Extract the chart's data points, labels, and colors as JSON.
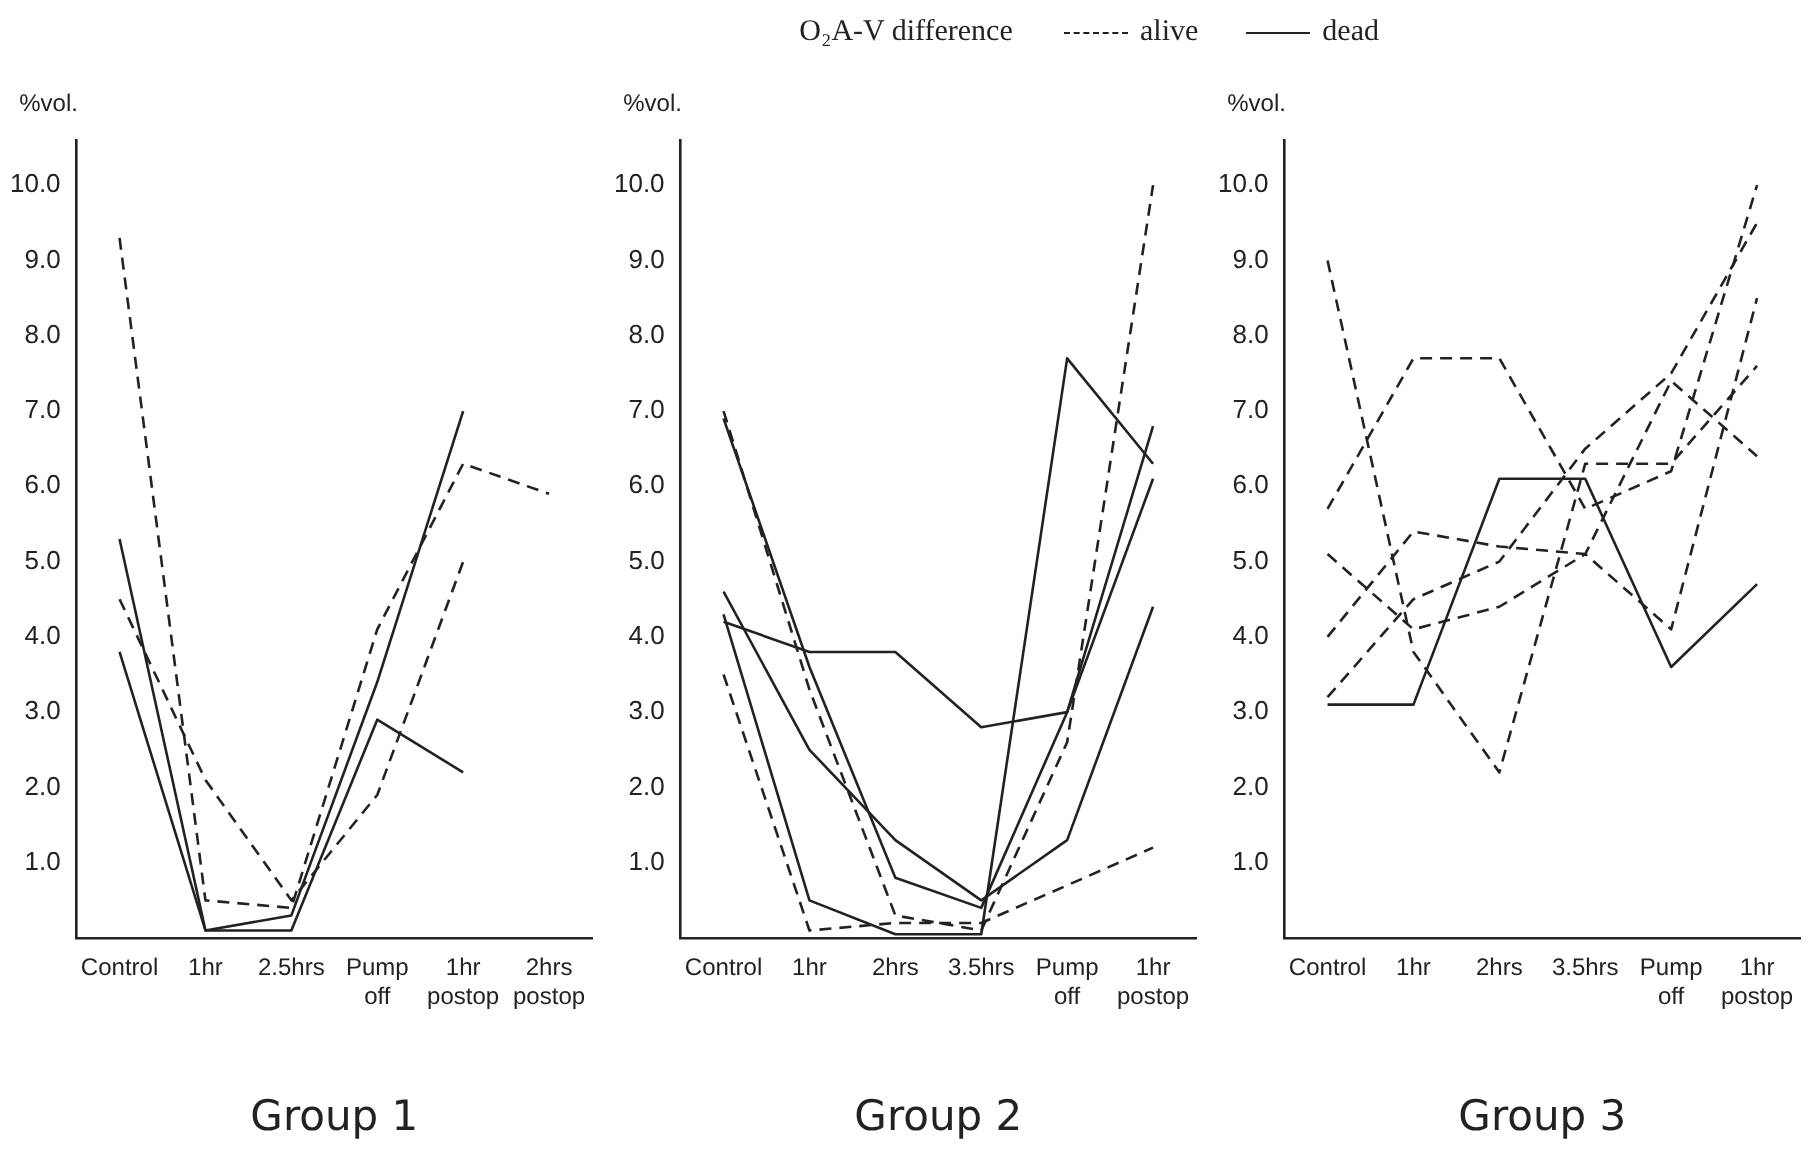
{
  "chart_data": [
    {
      "type": "line",
      "xlabel": "Group 1",
      "ylabel": "%vol.",
      "categories": [
        "Control",
        "1hr",
        "2.5hrs",
        "Pump off",
        "1hr postop",
        "2hrs postop"
      ],
      "ylim": [
        0,
        10.6
      ],
      "yticks": [
        {
          "value": 1,
          "label": "1.0"
        },
        {
          "value": 2,
          "label": "2.0"
        },
        {
          "value": 3,
          "label": "3.0"
        },
        {
          "value": 4,
          "label": "4.0"
        },
        {
          "value": 5,
          "label": "5.0"
        },
        {
          "value": 6,
          "label": "6.0"
        },
        {
          "value": 7,
          "label": "7.0"
        },
        {
          "value": 8,
          "label": "8.0"
        },
        {
          "value": 9,
          "label": "9.0"
        },
        {
          "value": 10,
          "label": "10.0"
        }
      ],
      "grid": false,
      "marker": "none",
      "series": [
        {
          "color": "#222222",
          "line_style": "dashed",
          "values": [
            9.3,
            0.5,
            0.4,
            4.1,
            6.3,
            5.9
          ]
        },
        {
          "color": "#222222",
          "line_style": "dashed",
          "values": [
            4.5,
            2.1,
            0.5,
            1.9,
            5.0,
            null
          ]
        },
        {
          "color": "#222222",
          "line_style": "solid",
          "values": [
            5.3,
            0.1,
            0.3,
            3.4,
            7.0,
            null
          ]
        },
        {
          "color": "#222222",
          "line_style": "solid",
          "values": [
            3.8,
            0.1,
            0.1,
            2.9,
            2.2,
            null
          ]
        }
      ]
    },
    {
      "type": "line",
      "title": "O₂A-V difference",
      "xlabel": "Group 2",
      "ylabel": "%vol.",
      "legend": "top right",
      "categories": [
        "Control",
        "1hr",
        "2hrs",
        "3.5hrs",
        "Pump off",
        "1hr postop"
      ],
      "ylim": [
        0,
        10.6
      ],
      "yticks": [
        {
          "value": 1,
          "label": "1.0"
        },
        {
          "value": 2,
          "label": "2.0"
        },
        {
          "value": 3,
          "label": "3.0"
        },
        {
          "value": 4,
          "label": "4.0"
        },
        {
          "value": 5,
          "label": "5.0"
        },
        {
          "value": 6,
          "label": "6.0"
        },
        {
          "value": 7,
          "label": "7.0"
        },
        {
          "value": 8,
          "label": "8.0"
        },
        {
          "value": 9,
          "label": "9.0"
        },
        {
          "value": 10,
          "label": "10.0"
        }
      ],
      "grid": false,
      "marker": "none",
      "series": [
        {
          "name": "alive",
          "color": "#222222",
          "line_style": "dashed",
          "values": [
            7.0,
            3.3,
            0.3,
            0.1,
            2.6,
            10.0
          ]
        },
        {
          "color": "#222222",
          "line_style": "dashed",
          "values": [
            3.5,
            0.1,
            0.2,
            0.2,
            0.7,
            1.2
          ]
        },
        {
          "name": "dead",
          "color": "#222222",
          "line_style": "solid",
          "values": [
            6.9,
            3.6,
            0.8,
            0.4,
            3.0,
            6.1
          ]
        },
        {
          "color": "#222222",
          "line_style": "solid",
          "values": [
            4.2,
            3.8,
            3.8,
            2.8,
            3.0,
            6.8
          ]
        },
        {
          "color": "#222222",
          "line_style": "solid",
          "values": [
            4.6,
            2.5,
            1.3,
            0.5,
            1.3,
            4.4
          ]
        },
        {
          "color": "#222222",
          "line_style": "solid",
          "values": [
            4.3,
            0.5,
            0.05,
            0.05,
            7.7,
            6.3
          ]
        }
      ]
    },
    {
      "type": "line",
      "xlabel": "Group 3",
      "ylabel": "%vol.",
      "categories": [
        "Control",
        "1hr",
        "2hrs",
        "3.5hrs",
        "Pump off",
        "1hr postop"
      ],
      "ylim": [
        0,
        10.6
      ],
      "yticks": [
        {
          "value": 1,
          "label": "1.0"
        },
        {
          "value": 2,
          "label": "2.0"
        },
        {
          "value": 3,
          "label": "3.0"
        },
        {
          "value": 4,
          "label": "4.0"
        },
        {
          "value": 5,
          "label": "5.0"
        },
        {
          "value": 6,
          "label": "6.0"
        },
        {
          "value": 7,
          "label": "7.0"
        },
        {
          "value": 8,
          "label": "8.0"
        },
        {
          "value": 9,
          "label": "9.0"
        },
        {
          "value": 10,
          "label": "10.0"
        }
      ],
      "grid": false,
      "marker": "none",
      "series": [
        {
          "color": "#222222",
          "line_style": "solid",
          "values": [
            3.1,
            3.1,
            6.1,
            6.1,
            3.6,
            4.7
          ]
        },
        {
          "color": "#222222",
          "line_style": "dashed",
          "values": [
            9.0,
            3.8,
            2.2,
            6.3,
            6.3,
            7.6
          ]
        },
        {
          "color": "#222222",
          "line_style": "dashed",
          "values": [
            5.7,
            7.7,
            7.7,
            5.7,
            6.2,
            10.0
          ]
        },
        {
          "color": "#222222",
          "line_style": "dashed",
          "values": [
            5.1,
            4.1,
            4.4,
            5.1,
            7.4,
            6.4
          ]
        },
        {
          "color": "#222222",
          "line_style": "dashed",
          "values": [
            4.0,
            5.4,
            5.2,
            5.1,
            4.1,
            8.5
          ]
        },
        {
          "color": "#222222",
          "line_style": "dashed",
          "values": [
            3.2,
            4.5,
            5.0,
            6.5,
            7.5,
            9.5
          ]
        }
      ]
    }
  ]
}
